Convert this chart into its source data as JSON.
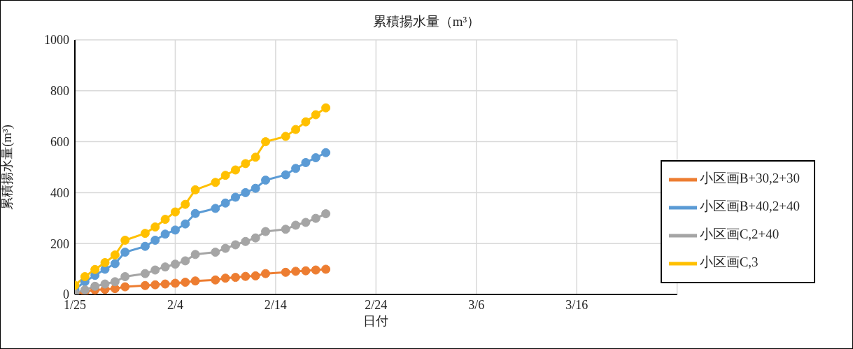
{
  "chart_data": {
    "type": "line",
    "title": "累積揚水量（m³）",
    "xlabel": "日付",
    "ylabel": "累積揚水量(m³)",
    "x": [
      "--01-25",
      "--01-26",
      "--01-27",
      "--01-28",
      "--01-29",
      "--01-30",
      "--02-01",
      "--02-02",
      "--02-03",
      "--02-04",
      "--02-05",
      "--02-06",
      "--02-08",
      "--02-09",
      "--02-10",
      "--02-11",
      "--02-12",
      "--02-13",
      "--02-15",
      "--02-16",
      "--02-17",
      "--02-18",
      "--02-19"
    ],
    "series": [
      {
        "name": "小区画B+30,2+30",
        "color": "#ed7d31",
        "values": [
          3,
          11,
          18,
          20,
          23,
          30,
          35,
          38,
          41,
          44,
          48,
          53,
          57,
          64,
          67,
          71,
          73,
          82,
          87,
          91,
          93,
          96,
          99
        ]
      },
      {
        "name": "小区画B+40,2+40",
        "color": "#5b9bd5",
        "values": [
          20,
          50,
          75,
          99,
          121,
          166,
          189,
          213,
          237,
          253,
          277,
          318,
          338,
          359,
          382,
          400,
          417,
          449,
          470,
          495,
          518,
          537,
          557
        ]
      },
      {
        "name": "小区画C,2+40",
        "color": "#a5a5a5",
        "values": [
          5,
          18,
          32,
          41,
          50,
          70,
          82,
          96,
          108,
          119,
          132,
          157,
          166,
          181,
          195,
          208,
          222,
          247,
          256,
          272,
          283,
          299,
          317
        ]
      },
      {
        "name": "小区画C,3",
        "color": "#ffc000",
        "values": [
          36,
          70,
          98,
          125,
          155,
          213,
          240,
          265,
          295,
          324,
          354,
          411,
          440,
          468,
          489,
          514,
          539,
          600,
          621,
          648,
          678,
          706,
          733
        ]
      }
    ],
    "xlim": [
      "--01-25",
      "--03-26"
    ],
    "xticks": [
      {
        "value": "--01-25",
        "label": "1/25"
      },
      {
        "value": "--02-04",
        "label": "2/4"
      },
      {
        "value": "--02-14",
        "label": "2/14"
      },
      {
        "value": "--02-24",
        "label": "2/24"
      },
      {
        "value": "--03-06",
        "label": "3/6"
      },
      {
        "value": "--03-16",
        "label": "3/16"
      }
    ],
    "ylim": [
      0,
      1000
    ],
    "yticks": [
      0,
      200,
      400,
      600,
      800,
      1000
    ],
    "grid": true,
    "legend": "bottom right",
    "marker": "circle",
    "line_style": "solid"
  }
}
